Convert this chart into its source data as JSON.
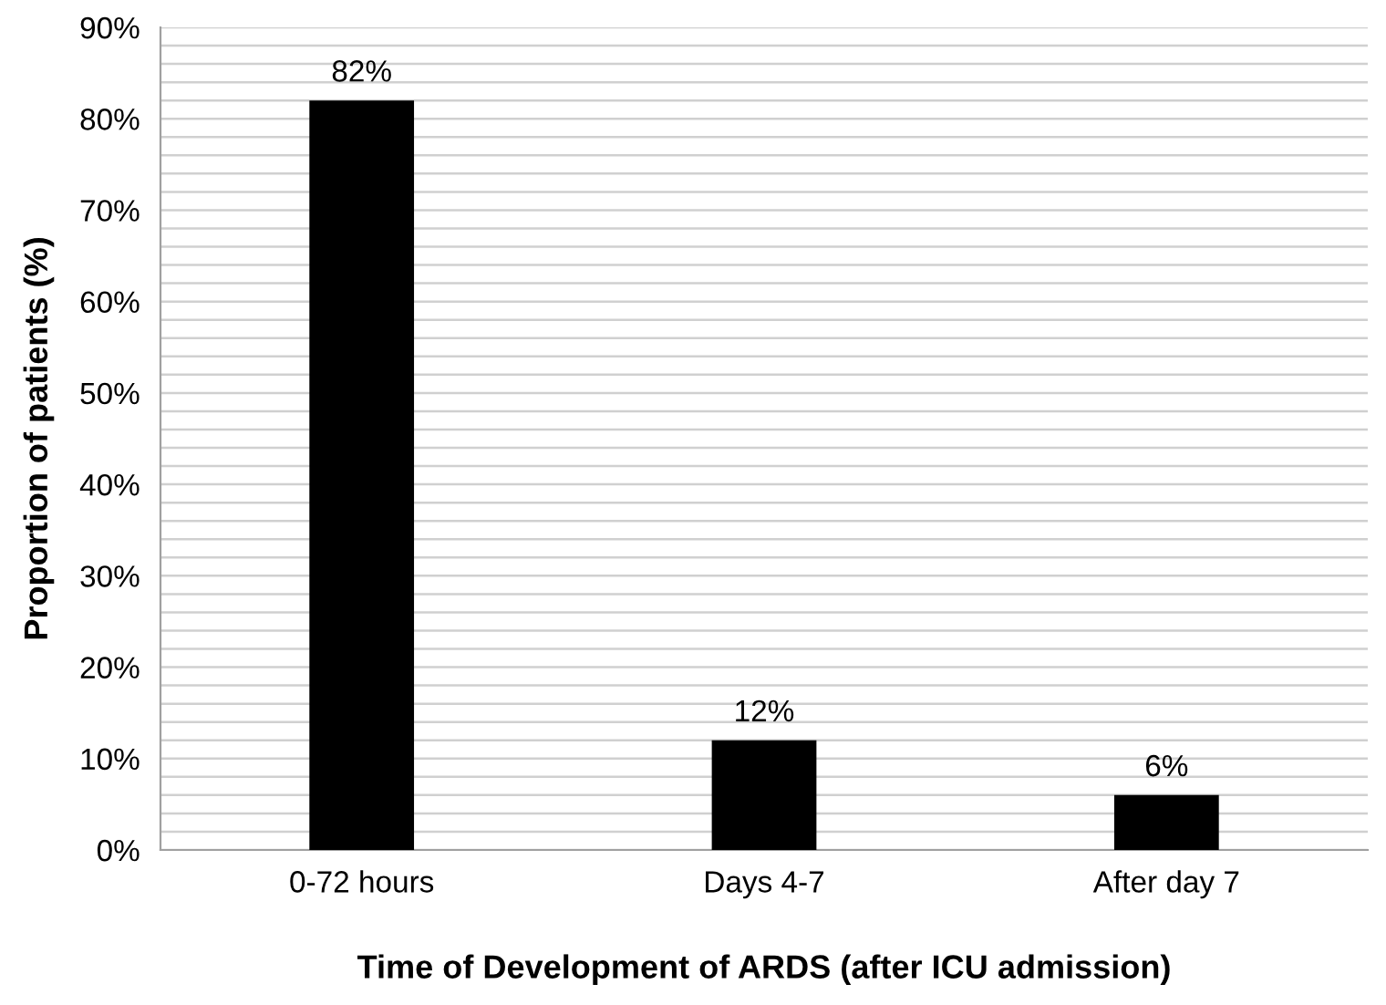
{
  "chart_data": {
    "type": "bar",
    "xlabel": "Time of Development of ARDS (after ICU admission)",
    "ylabel": "Proportion of patients (%)",
    "categories": [
      "0-72 hours",
      "Days 4-7",
      "After day 7"
    ],
    "values": [
      82,
      12,
      6
    ],
    "color": "#000000",
    "value_labels": [
      "82%",
      "12%",
      "6%"
    ],
    "ylim": [
      0,
      90
    ],
    "yticks": [
      {
        "value": 0,
        "label": "0%"
      },
      {
        "value": 2,
        "label": null
      },
      {
        "value": 4,
        "label": null
      },
      {
        "value": 6,
        "label": null
      },
      {
        "value": 8,
        "label": null
      },
      {
        "value": 10,
        "label": "10%"
      },
      {
        "value": 12,
        "label": null
      },
      {
        "value": 14,
        "label": null
      },
      {
        "value": 16,
        "label": null
      },
      {
        "value": 18,
        "label": null
      },
      {
        "value": 20,
        "label": "20%"
      },
      {
        "value": 22,
        "label": null
      },
      {
        "value": 24,
        "label": null
      },
      {
        "value": 26,
        "label": null
      },
      {
        "value": 28,
        "label": null
      },
      {
        "value": 30,
        "label": "30%"
      },
      {
        "value": 32,
        "label": null
      },
      {
        "value": 34,
        "label": null
      },
      {
        "value": 36,
        "label": null
      },
      {
        "value": 38,
        "label": null
      },
      {
        "value": 40,
        "label": "40%"
      },
      {
        "value": 42,
        "label": null
      },
      {
        "value": 44,
        "label": null
      },
      {
        "value": 46,
        "label": null
      },
      {
        "value": 48,
        "label": null
      },
      {
        "value": 50,
        "label": "50%"
      },
      {
        "value": 52,
        "label": null
      },
      {
        "value": 54,
        "label": null
      },
      {
        "value": 56,
        "label": null
      },
      {
        "value": 58,
        "label": null
      },
      {
        "value": 60,
        "label": "60%"
      },
      {
        "value": 62,
        "label": null
      },
      {
        "value": 64,
        "label": null
      },
      {
        "value": 66,
        "label": null
      },
      {
        "value": 68,
        "label": null
      },
      {
        "value": 70,
        "label": "70%"
      },
      {
        "value": 72,
        "label": null
      },
      {
        "value": 74,
        "label": null
      },
      {
        "value": 76,
        "label": null
      },
      {
        "value": 78,
        "label": null
      },
      {
        "value": 80,
        "label": "80%"
      },
      {
        "value": 82,
        "label": null
      },
      {
        "value": 84,
        "label": null
      },
      {
        "value": 86,
        "label": null
      },
      {
        "value": 88,
        "label": null
      },
      {
        "value": 90,
        "label": "90%"
      }
    ],
    "grid": "y"
  }
}
